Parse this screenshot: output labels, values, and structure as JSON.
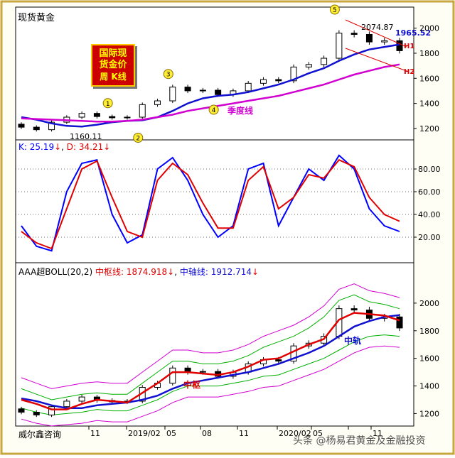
{
  "title": "现货黄金",
  "badge": {
    "lines": [
      "国际现",
      "货金价",
      "周 K线"
    ]
  },
  "price_panel": {
    "price_labels": {
      "high": "2074.87",
      "last": "1965.52",
      "low": "1160.11"
    },
    "annotations": {
      "season_line": "季度线",
      "h1": "H1",
      "h2": "H2"
    },
    "wave_markers": [
      "1",
      "2",
      "3",
      "4",
      "5"
    ],
    "yticks": [
      "2000",
      "1800",
      "1600",
      "1400",
      "1200"
    ]
  },
  "kd_panel": {
    "k_label": "K: 25.19",
    "k_arrow": "↓",
    "d_label": "D: 34.21",
    "d_arrow": "↓",
    "yticks": [
      "80.00",
      "60.00",
      "40.00",
      "20.00"
    ]
  },
  "boll_panel": {
    "name": "AAA超BOLL(20,2)",
    "mid_label": "中枢线: 1874.918",
    "mid_arrow": "↓",
    "axis_label": "中轴线: 1912.714",
    "axis_arrow": "↓",
    "annot_zhongshu": "中枢",
    "annot_zhonggui": "中轨",
    "yticks": [
      "2000",
      "1800",
      "1600",
      "1400",
      "1200"
    ]
  },
  "x_axis": {
    "source": "威尔鑫咨询",
    "ticks": [
      "11",
      "2019/02",
      "05",
      "08",
      "11",
      "2020/02",
      "05",
      "",
      "11"
    ]
  },
  "watermark": "头条 @杨易君黄金及金融投资",
  "colors": {
    "up": "#000000",
    "down": "#000000",
    "ma_blue": "#1010d0",
    "ma_magenta": "#d000d0",
    "k_line": "#0000ff",
    "d_line": "#e00000",
    "boll_red": "#e00000",
    "boll_green": "#00b000",
    "boll_magenta": "#d000d0",
    "badge_bg": "#cc0000",
    "badge_text": "#ffff00"
  },
  "chart_data": [
    {
      "type": "candlestick",
      "title": "现货黄金",
      "x": [
        "2018-10",
        "2018-11",
        "2018-12",
        "2019-01",
        "2019-02",
        "2019-03",
        "2019-04",
        "2019-05",
        "2019-06",
        "2019-07",
        "2019-08",
        "2019-09",
        "2019-10",
        "2019-11",
        "2019-12",
        "2020-01",
        "2020-02",
        "2020-03",
        "2020-04",
        "2020-05",
        "2020-06",
        "2020-07",
        "2020-08",
        "2020-09",
        "2020-10",
        "2020-11"
      ],
      "close": [
        1210,
        1190,
        1250,
        1290,
        1320,
        1295,
        1285,
        1290,
        1390,
        1420,
        1530,
        1500,
        1505,
        1470,
        1500,
        1560,
        1590,
        1580,
        1690,
        1710,
        1760,
        1960,
        1950,
        1890,
        1900,
        1820
      ],
      "ylim": [
        1120,
        2100
      ],
      "series": [
        {
          "name": "MA (blue)",
          "values": [
            1290,
            1270,
            1240,
            1220,
            1215,
            1230,
            1250,
            1260,
            1265,
            1290,
            1340,
            1400,
            1440,
            1460,
            1470,
            1490,
            1520,
            1550,
            1590,
            1640,
            1680,
            1740,
            1790,
            1830,
            1850,
            1870
          ]
        },
        {
          "name": "季度线",
          "values": [
            1280,
            1275,
            1270,
            1265,
            1260,
            1255,
            1255,
            1260,
            1270,
            1290,
            1310,
            1340,
            1360,
            1380,
            1400,
            1420,
            1440,
            1460,
            1490,
            1520,
            1550,
            1590,
            1630,
            1660,
            1690,
            1710
          ]
        }
      ]
    },
    {
      "type": "line",
      "ylim": [
        0,
        100
      ],
      "series": [
        {
          "name": "K",
          "values": [
            30,
            12,
            8,
            60,
            85,
            88,
            40,
            15,
            22,
            80,
            90,
            70,
            40,
            20,
            30,
            80,
            85,
            30,
            55,
            80,
            70,
            92,
            80,
            45,
            30,
            25
          ]
        },
        {
          "name": "D",
          "values": [
            25,
            15,
            10,
            45,
            80,
            87,
            55,
            25,
            20,
            70,
            85,
            75,
            50,
            28,
            28,
            70,
            82,
            45,
            55,
            75,
            72,
            88,
            82,
            55,
            40,
            34
          ]
        }
      ]
    },
    {
      "type": "line",
      "ylim": [
        1120,
        2200
      ],
      "series": [
        {
          "name": "中枢线",
          "values": [
            1300,
            1270,
            1230,
            1230,
            1270,
            1300,
            1290,
            1280,
            1350,
            1420,
            1500,
            1500,
            1490,
            1480,
            1500,
            1540,
            1590,
            1600,
            1650,
            1700,
            1740,
            1880,
            1930,
            1920,
            1910,
            1875
          ]
        },
        {
          "name": "中轴线",
          "values": [
            1310,
            1290,
            1260,
            1240,
            1240,
            1260,
            1270,
            1280,
            1300,
            1330,
            1380,
            1420,
            1440,
            1460,
            1480,
            1500,
            1530,
            1560,
            1600,
            1640,
            1690,
            1760,
            1830,
            1870,
            1900,
            1913
          ]
        },
        {
          "name": "upper",
          "values": [
            1380,
            1340,
            1300,
            1320,
            1340,
            1350,
            1340,
            1340,
            1420,
            1500,
            1580,
            1580,
            1560,
            1560,
            1580,
            1620,
            1680,
            1720,
            1760,
            1820,
            1900,
            2020,
            2060,
            2010,
            1990,
            1960
          ]
        },
        {
          "name": "lower",
          "values": [
            1240,
            1210,
            1190,
            1200,
            1210,
            1230,
            1220,
            1220,
            1260,
            1300,
            1360,
            1400,
            1400,
            1400,
            1420,
            1440,
            1470,
            1480,
            1520,
            1560,
            1600,
            1660,
            1720,
            1760,
            1770,
            1760
          ]
        }
      ]
    }
  ]
}
